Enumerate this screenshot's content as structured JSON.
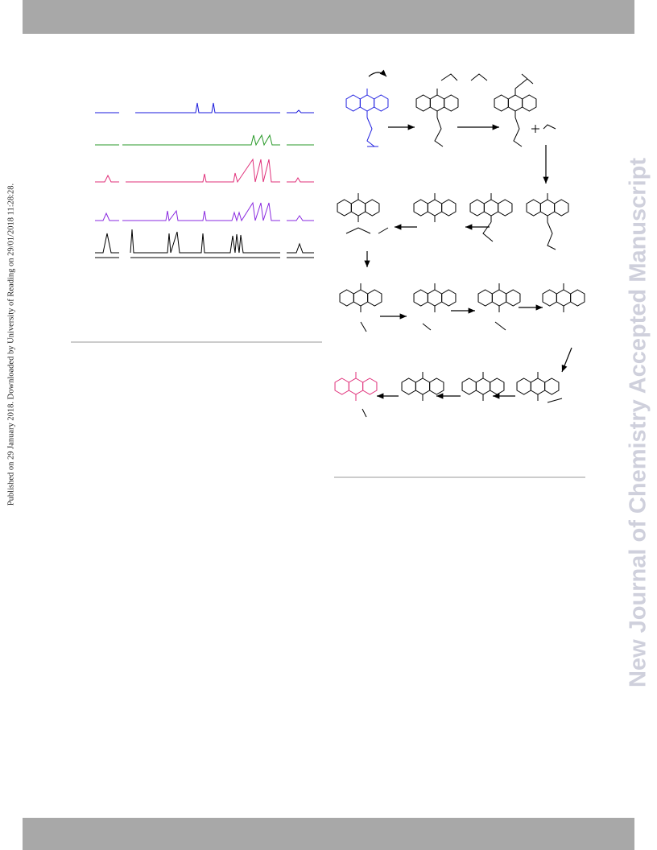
{
  "side_note": "Published on 29 January 2018. Downloaded by University of Reading on 29/01/2018 11:28:28.",
  "watermark": "New Journal of Chemistry Accepted Manuscript"
}
